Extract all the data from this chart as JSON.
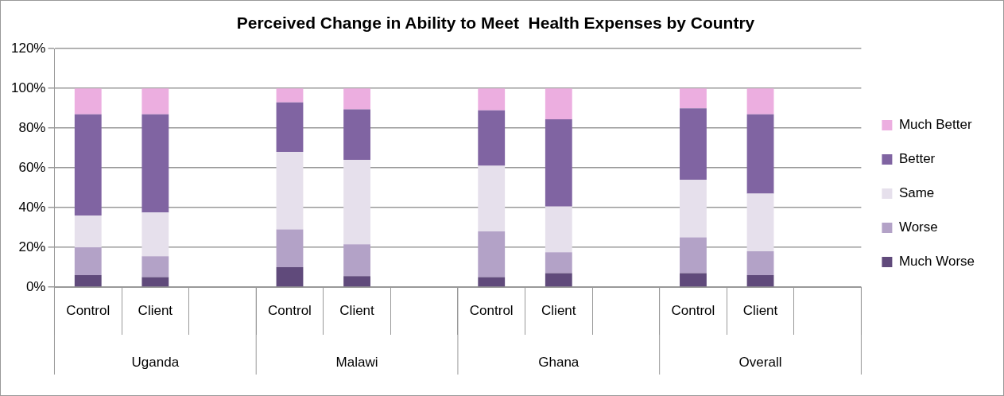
{
  "chart_data": {
    "type": "bar",
    "title": "Perceived Change in Ability to Meet  Health Expenses by Country",
    "categories": [
      "Control",
      "Client",
      null,
      "Control",
      "Client",
      null,
      "Control",
      "Client",
      null,
      "Control",
      "Client",
      null
    ],
    "stacked": true,
    "series": [
      {
        "name": "Much Worse",
        "color": "#604a7b",
        "values": [
          6,
          5,
          null,
          10,
          5.5,
          null,
          5,
          7,
          null,
          7,
          6,
          null
        ]
      },
      {
        "name": "Worse",
        "color": "#b3a2c7",
        "values": [
          14,
          10.5,
          null,
          19,
          16,
          null,
          23,
          10.5,
          null,
          18,
          12,
          null
        ]
      },
      {
        "name": "Same",
        "color": "#e6e0ec",
        "values": [
          16,
          22,
          null,
          39,
          42.5,
          null,
          33,
          23,
          null,
          29,
          29,
          null
        ]
      },
      {
        "name": "Better",
        "color": "#8064a2",
        "values": [
          51,
          49.5,
          null,
          25,
          25.5,
          null,
          28,
          44,
          null,
          36,
          40,
          null
        ]
      },
      {
        "name": "Much Better",
        "color": "#ecaee0",
        "values": [
          13,
          13,
          null,
          7,
          10.5,
          null,
          11,
          15.5,
          null,
          10,
          13,
          null
        ]
      }
    ],
    "ylim": [
      0,
      120
    ],
    "yticks": [
      {
        "value": 0,
        "label": "0%"
      },
      {
        "value": 20,
        "label": "20%"
      },
      {
        "value": 40,
        "label": "40%"
      },
      {
        "value": 60,
        "label": "60%"
      },
      {
        "value": 80,
        "label": "80%"
      },
      {
        "value": 100,
        "label": "100%"
      },
      {
        "value": 120,
        "label": "120%"
      }
    ],
    "grid": "y",
    "legend": "right",
    "annotations": [
      "Uganda",
      "Malawi",
      "Ghana",
      "Overall"
    ]
  }
}
